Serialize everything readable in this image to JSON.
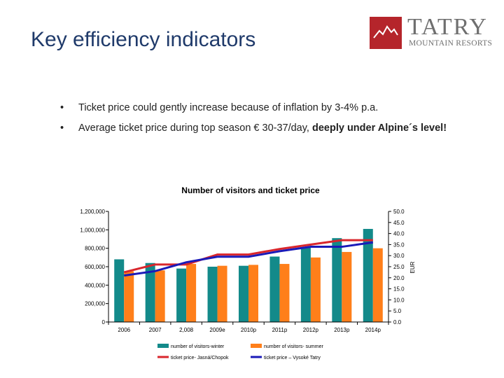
{
  "slide": {
    "title": "Key efficiency indicators",
    "bullet_marker": "•",
    "bullets": [
      {
        "text": "Ticket price could gently increase because of inflation by 3-4% p.a."
      },
      {
        "text": "Average ticket price during top season € 30-37/day, ",
        "bold": "deeply under Alpine´s level!"
      }
    ]
  },
  "logo": {
    "word": "TATRY",
    "sub": "MOUNTAIN RESORTS",
    "mark_color": "#b5252b",
    "icon": "mountain-icon"
  },
  "chart_data": {
    "type": "bar",
    "title": "Number of visitors and ticket price",
    "categories": [
      "2006",
      "2007",
      "2,008",
      "2009e",
      "2010p",
      "2011p",
      "2012p",
      "2013p",
      "2014p"
    ],
    "left_axis": {
      "min": 0,
      "max": 1200000,
      "ticks": [
        {
          "value": 0,
          "label": "0"
        },
        {
          "value": 200000,
          "label": "200,000"
        },
        {
          "value": 400000,
          "label": "400,000"
        },
        {
          "value": 600000,
          "label": "600,000"
        },
        {
          "value": 800000,
          "label": "800,000"
        },
        {
          "value": 1000000,
          "label": "1,000,000"
        },
        {
          "value": 1200000,
          "label": "1,200,000"
        }
      ]
    },
    "right_axis": {
      "label": "EUR",
      "min": 0,
      "max": 50,
      "ticks": [
        {
          "value": 0,
          "label": "0.0"
        },
        {
          "value": 5,
          "label": "5.0"
        },
        {
          "value": 10,
          "label": "10.0"
        },
        {
          "value": 15,
          "label": "15.0"
        },
        {
          "value": 20,
          "label": "20.0"
        },
        {
          "value": 25,
          "label": "25.0"
        },
        {
          "value": 30,
          "label": "30.0"
        },
        {
          "value": 35,
          "label": "35.0"
        },
        {
          "value": 40,
          "label": "40.0"
        },
        {
          "value": 45,
          "label": "45.0"
        },
        {
          "value": 50,
          "label": "50.0"
        }
      ]
    },
    "bar_series": [
      {
        "name": "number of visitors-winter",
        "color": "#138a8a",
        "values": [
          680000,
          640000,
          580000,
          600000,
          610000,
          710000,
          810000,
          910000,
          1010000
        ]
      },
      {
        "name": "number of visitors- summer",
        "color": "#ff7f1a",
        "values": [
          550000,
          560000,
          630000,
          610000,
          620000,
          630000,
          700000,
          760000,
          800000
        ]
      }
    ],
    "line_series": [
      {
        "name": "ticket price- Jasná/Chopok",
        "color": "#d9262c",
        "values": [
          22.5,
          26.0,
          26.0,
          30.5,
          30.5,
          33.0,
          35.0,
          37.0,
          37.0
        ]
      },
      {
        "name": "ticket price – Vysoké Tatry",
        "color": "#1a1ab8",
        "values": [
          21.0,
          23.0,
          27.0,
          29.5,
          29.5,
          32.0,
          34.0,
          34.0,
          36.0
        ]
      }
    ],
    "legend": "bottom",
    "grid": false
  }
}
